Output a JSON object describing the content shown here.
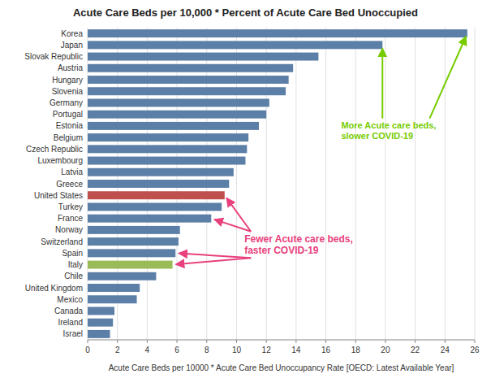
{
  "chart_data": {
    "type": "bar",
    "orientation": "horizontal",
    "title": "Acute Care Beds per 10,000 * Percent of Acute Care Bed Unoccupied",
    "x_label": "Acute Care Beds per 10000 * Acute Care Bed Unoccupancy Rate [OECD: Latest Available Year]",
    "categories": [
      "Korea",
      "Japan",
      "Slovak Republic",
      "Austria",
      "Hungary",
      "Slovenia",
      "Germany",
      "Portugal",
      "Estonia",
      "Belgium",
      "Czech Republic",
      "Luxembourg",
      "Latvia",
      "Greece",
      "United States",
      "Turkey",
      "France",
      "Norway",
      "Switzerland",
      "Spain",
      "Italy",
      "Chile",
      "United Kingdom",
      "Mexico",
      "Canada",
      "Ireland",
      "Israel"
    ],
    "values": [
      25.5,
      19.8,
      15.5,
      13.8,
      13.5,
      13.3,
      12.2,
      12.0,
      11.5,
      10.8,
      10.7,
      10.6,
      9.8,
      9.5,
      9.2,
      9.0,
      8.3,
      6.2,
      6.1,
      5.9,
      5.7,
      4.6,
      3.5,
      3.3,
      1.8,
      1.7,
      1.5
    ],
    "colors": [
      "#5b7fa6",
      "#5b7fa6",
      "#5b7fa6",
      "#5b7fa6",
      "#5b7fa6",
      "#5b7fa6",
      "#5b7fa6",
      "#5b7fa6",
      "#5b7fa6",
      "#5b7fa6",
      "#5b7fa6",
      "#5b7fa6",
      "#5b7fa6",
      "#5b7fa6",
      "#c0504d",
      "#5b7fa6",
      "#5b7fa6",
      "#5b7fa6",
      "#5b7fa6",
      "#5b7fa6",
      "#9bbb59",
      "#5b7fa6",
      "#5b7fa6",
      "#5b7fa6",
      "#5b7fa6",
      "#5b7fa6",
      "#5b7fa6"
    ],
    "xlim": [
      0,
      26
    ],
    "xticks": [
      0,
      2,
      4,
      6,
      8,
      10,
      12,
      14,
      16,
      18,
      20,
      22,
      24,
      26
    ],
    "grid": true,
    "annotations": [
      {
        "text": "More Acute care beds,\nslower COVID-19",
        "color": "#77cc00",
        "targets": [
          "Japan",
          "Korea"
        ]
      },
      {
        "text": "Fewer Acute care beds,\nfaster COVID-19",
        "color": "#e8417d",
        "targets": [
          "United States",
          "France",
          "Spain",
          "Italy"
        ]
      }
    ]
  }
}
